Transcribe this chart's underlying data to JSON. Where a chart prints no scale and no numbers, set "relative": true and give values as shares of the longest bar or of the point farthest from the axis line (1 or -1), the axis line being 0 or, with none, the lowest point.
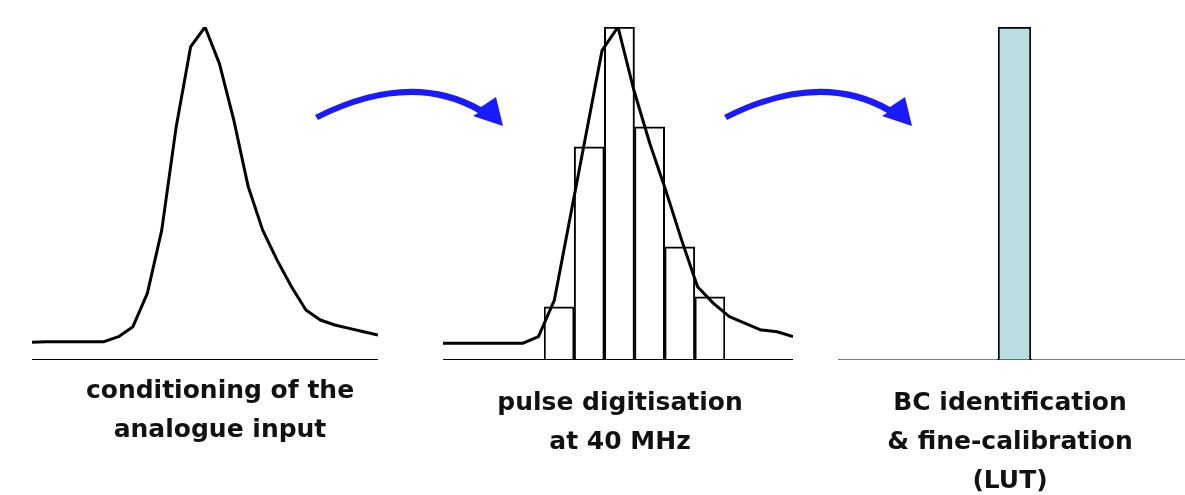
{
  "chart_data": [
    {
      "type": "line",
      "relative": true,
      "marker": "none",
      "xlabel": "conditioning of the\nanalogue input",
      "categories": [
        null,
        null,
        null,
        null,
        null,
        null,
        null,
        null,
        null,
        null,
        null,
        null,
        null,
        null,
        null,
        null,
        null,
        null,
        null,
        null,
        null,
        null,
        null,
        null,
        null
      ],
      "series": [
        {
          "color": "#000000",
          "values": [
            0.053,
            0.055,
            0.055,
            0.055,
            0.055,
            0.055,
            0.07,
            0.1,
            0.2,
            0.39,
            0.7,
            0.94,
            1.0,
            0.89,
            0.72,
            0.52,
            0.39,
            0.3,
            0.22,
            0.15,
            0.12,
            0.105,
            0.095,
            0.085,
            0.075
          ]
        }
      ]
    },
    {
      "type": "bar",
      "relative": true,
      "xlabel": "pulse digitisation\nat 40 MHz",
      "categories": [
        null,
        null,
        null,
        null,
        null,
        null
      ],
      "series": [
        {
          "color": "#ffffff",
          "values": [
            0.16,
            0.64,
            1.0,
            0.7,
            0.34,
            0.19
          ]
        }
      ]
    },
    {
      "type": "line",
      "relative": true,
      "marker": "none",
      "categories": [
        null,
        null,
        null,
        null,
        null,
        null,
        null,
        null,
        null,
        null,
        null,
        null,
        null,
        null,
        null,
        null,
        null,
        null,
        null,
        null,
        null,
        null,
        null
      ],
      "series": [
        {
          "color": "#000000",
          "values": [
            0.05,
            0.05,
            0.05,
            0.05,
            0.05,
            0.05,
            0.07,
            0.18,
            0.43,
            0.68,
            0.93,
            1.0,
            0.81,
            0.65,
            0.51,
            0.36,
            0.22,
            0.17,
            0.13,
            0.11,
            0.09,
            0.085,
            0.07
          ]
        }
      ]
    },
    {
      "type": "bar",
      "relative": true,
      "xlabel": "BC identification\n& fine-calibration\n(LUT)",
      "categories": [
        null
      ],
      "series": [
        {
          "color": "#b9dde0",
          "values": [
            1
          ]
        }
      ]
    }
  ]
}
